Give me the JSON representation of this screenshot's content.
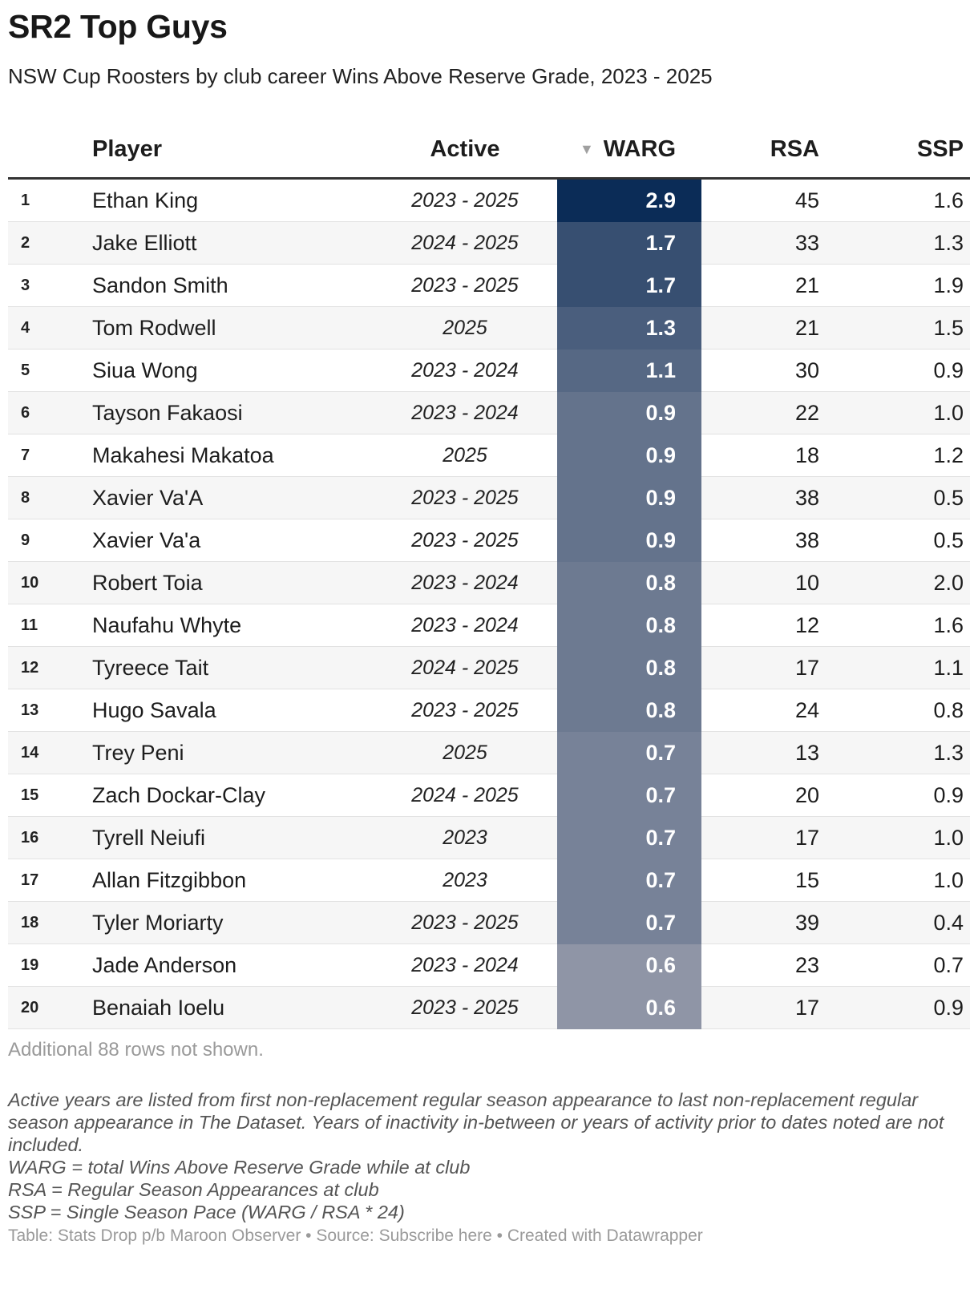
{
  "title": "SR2 Top Guys",
  "subtitle": "NSW Cup Roosters by club career Wins Above Reserve Grade, 2023 - 2025",
  "columns": {
    "player": "Player",
    "active": "Active",
    "sort_icon": "▼",
    "warg": "WARG",
    "rsa": "RSA",
    "ssp": "SSP"
  },
  "rows": [
    {
      "rank": "1",
      "player": "Ethan King",
      "active": "2023 - 2025",
      "warg": "2.9",
      "rsa": "45",
      "ssp": "1.6"
    },
    {
      "rank": "2",
      "player": "Jake Elliott",
      "active": "2024 - 2025",
      "warg": "1.7",
      "rsa": "33",
      "ssp": "1.3"
    },
    {
      "rank": "3",
      "player": "Sandon Smith",
      "active": "2023 - 2025",
      "warg": "1.7",
      "rsa": "21",
      "ssp": "1.9"
    },
    {
      "rank": "4",
      "player": "Tom Rodwell",
      "active": "2025",
      "warg": "1.3",
      "rsa": "21",
      "ssp": "1.5"
    },
    {
      "rank": "5",
      "player": "Siua Wong",
      "active": "2023 - 2024",
      "warg": "1.1",
      "rsa": "30",
      "ssp": "0.9"
    },
    {
      "rank": "6",
      "player": "Tayson Fakaosi",
      "active": "2023 - 2024",
      "warg": "0.9",
      "rsa": "22",
      "ssp": "1.0"
    },
    {
      "rank": "7",
      "player": "Makahesi Makatoa",
      "active": "2025",
      "warg": "0.9",
      "rsa": "18",
      "ssp": "1.2"
    },
    {
      "rank": "8",
      "player": "Xavier Va'A",
      "active": "2023 - 2025",
      "warg": "0.9",
      "rsa": "38",
      "ssp": "0.5"
    },
    {
      "rank": "9",
      "player": "Xavier Va'a",
      "active": "2023 - 2025",
      "warg": "0.9",
      "rsa": "38",
      "ssp": "0.5"
    },
    {
      "rank": "10",
      "player": "Robert Toia",
      "active": "2023 - 2024",
      "warg": "0.8",
      "rsa": "10",
      "ssp": "2.0"
    },
    {
      "rank": "11",
      "player": "Naufahu Whyte",
      "active": "2023 - 2024",
      "warg": "0.8",
      "rsa": "12",
      "ssp": "1.6"
    },
    {
      "rank": "12",
      "player": "Tyreece Tait",
      "active": "2024 - 2025",
      "warg": "0.8",
      "rsa": "17",
      "ssp": "1.1"
    },
    {
      "rank": "13",
      "player": "Hugo Savala",
      "active": "2023 - 2025",
      "warg": "0.8",
      "rsa": "24",
      "ssp": "0.8"
    },
    {
      "rank": "14",
      "player": "Trey Peni",
      "active": "2025",
      "warg": "0.7",
      "rsa": "13",
      "ssp": "1.3"
    },
    {
      "rank": "15",
      "player": "Zach Dockar-Clay",
      "active": "2024 - 2025",
      "warg": "0.7",
      "rsa": "20",
      "ssp": "0.9"
    },
    {
      "rank": "16",
      "player": "Tyrell Neiufi",
      "active": "2023",
      "warg": "0.7",
      "rsa": "17",
      "ssp": "1.0"
    },
    {
      "rank": "17",
      "player": "Allan Fitzgibbon",
      "active": "2023",
      "warg": "0.7",
      "rsa": "15",
      "ssp": "1.0"
    },
    {
      "rank": "18",
      "player": "Tyler Moriarty",
      "active": "2023 - 2025",
      "warg": "0.7",
      "rsa": "39",
      "ssp": "0.4"
    },
    {
      "rank": "19",
      "player": "Jade Anderson",
      "active": "2023 - 2024",
      "warg": "0.6",
      "rsa": "23",
      "ssp": "0.7"
    },
    {
      "rank": "20",
      "player": "Benaiah Ioelu",
      "active": "2023 - 2025",
      "warg": "0.6",
      "rsa": "17",
      "ssp": "0.9"
    }
  ],
  "heatmap_colors": {
    "high": "#0b2c57",
    "low": "#8f95a6"
  },
  "more_rows_note": "Additional 88 rows not shown.",
  "notes": [
    "Active years are listed from first non-replacement regular season appearance to last non-replacement regular season appearance in The Dataset. Years of inactivity in-between or years of activity prior to dates noted are not included.",
    "WARG = total Wins Above Reserve Grade while at club",
    "RSA = Regular Season Appearances at club",
    "SSP = Single Season Pace (WARG / RSA * 24)"
  ],
  "footer": "Table: Stats Drop p/b Maroon Observer • Source: Subscribe here • Created with Datawrapper"
}
